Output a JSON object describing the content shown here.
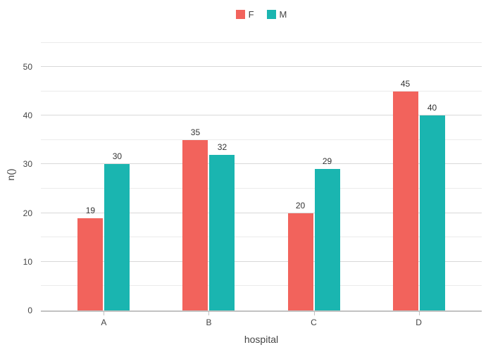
{
  "chart_data": {
    "type": "bar",
    "title": "",
    "categories": [
      "A",
      "B",
      "C",
      "D"
    ],
    "series": [
      {
        "name": "F",
        "color": "#F2635C",
        "values": [
          19,
          35,
          20,
          45
        ]
      },
      {
        "name": "M",
        "color": "#1AB5B0",
        "values": [
          30,
          32,
          29,
          40
        ]
      }
    ],
    "xlabel": "hospital",
    "ylabel": "n()",
    "ylim": [
      0,
      55.8
    ],
    "x_range": [
      -0.6,
      3.6
    ],
    "yticks_major": [
      0,
      10,
      20,
      30,
      40,
      50
    ],
    "yticks_minor": [
      5,
      15,
      25,
      35,
      45,
      55
    ],
    "grid": true,
    "bar_value_labels": true,
    "legend_position": "top-center",
    "colors": {
      "background": "#ffffff",
      "gridline_major": "#d9d9d9",
      "gridline_minor": "#ebebeb",
      "axis_line": "#c2c2c2",
      "tick_text": "#444444",
      "bar_label_text": "#333333"
    }
  }
}
